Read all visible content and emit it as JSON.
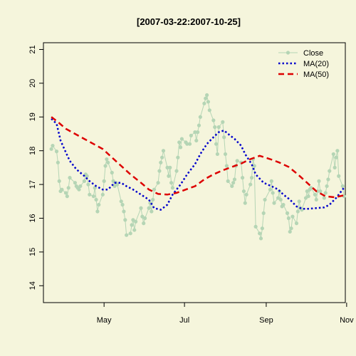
{
  "chart_data": {
    "type": "line",
    "title": "[2007-03-22:2007-10-25]",
    "xlabel": "",
    "ylabel": "",
    "xlim": [
      "2007-03-16",
      "2007-10-31"
    ],
    "ylim": [
      13.5,
      21.2
    ],
    "x_ticks": [
      {
        "label": "May",
        "date": "2007-05-01"
      },
      {
        "label": "Jul",
        "date": "2007-07-01"
      },
      {
        "label": "Sep",
        "date": "2007-09-01"
      },
      {
        "label": "Nov",
        "date": "2007-11-01"
      }
    ],
    "y_ticks": [
      14,
      15,
      16,
      17,
      18,
      19,
      20,
      21
    ],
    "grid": false,
    "legend_position": "top-right",
    "colors": {
      "background": "#F5F5DC",
      "close": "#B5D5B5",
      "ma20": "#0000CC",
      "ma50": "#DD0000",
      "axis": "#000000"
    },
    "series": [
      {
        "name": "Close",
        "style": "line-points",
        "points": [
          [
            "2007-03-22",
            18.05
          ],
          [
            "2007-03-23",
            18.15
          ],
          [
            "2007-03-26",
            17.98
          ],
          [
            "2007-03-27",
            17.65
          ],
          [
            "2007-03-28",
            17.1
          ],
          [
            "2007-03-29",
            16.8
          ],
          [
            "2007-03-30",
            16.85
          ],
          [
            "2007-04-02",
            16.75
          ],
          [
            "2007-04-03",
            16.65
          ],
          [
            "2007-04-04",
            16.9
          ],
          [
            "2007-04-05",
            17.2
          ],
          [
            "2007-04-09",
            17.05
          ],
          [
            "2007-04-10",
            16.95
          ],
          [
            "2007-04-11",
            16.9
          ],
          [
            "2007-04-12",
            16.85
          ],
          [
            "2007-04-13",
            16.95
          ],
          [
            "2007-04-16",
            17.1
          ],
          [
            "2007-04-17",
            17.3
          ],
          [
            "2007-04-18",
            17.25
          ],
          [
            "2007-04-19",
            17.0
          ],
          [
            "2007-04-20",
            16.7
          ],
          [
            "2007-04-23",
            16.65
          ],
          [
            "2007-04-24",
            16.9
          ],
          [
            "2007-04-25",
            16.55
          ],
          [
            "2007-04-26",
            16.2
          ],
          [
            "2007-04-27",
            16.4
          ],
          [
            "2007-04-30",
            16.7
          ],
          [
            "2007-05-01",
            17.1
          ],
          [
            "2007-05-02",
            17.55
          ],
          [
            "2007-05-03",
            17.75
          ],
          [
            "2007-05-04",
            17.65
          ],
          [
            "2007-05-07",
            17.35
          ],
          [
            "2007-05-08",
            17.1
          ],
          [
            "2007-05-09",
            16.95
          ],
          [
            "2007-05-10",
            17.05
          ],
          [
            "2007-05-11",
            17.0
          ],
          [
            "2007-05-14",
            16.5
          ],
          [
            "2007-05-15",
            16.4
          ],
          [
            "2007-05-16",
            16.2
          ],
          [
            "2007-05-17",
            15.95
          ],
          [
            "2007-05-18",
            15.5
          ],
          [
            "2007-05-21",
            15.55
          ],
          [
            "2007-05-22",
            15.8
          ],
          [
            "2007-05-23",
            15.95
          ],
          [
            "2007-05-24",
            15.65
          ],
          [
            "2007-05-25",
            15.9
          ],
          [
            "2007-05-29",
            16.3
          ],
          [
            "2007-05-30",
            16.05
          ],
          [
            "2007-05-31",
            15.85
          ],
          [
            "2007-06-01",
            16.0
          ],
          [
            "2007-06-04",
            16.3
          ],
          [
            "2007-06-05",
            16.45
          ],
          [
            "2007-06-06",
            16.2
          ],
          [
            "2007-06-07",
            16.55
          ],
          [
            "2007-06-08",
            16.85
          ],
          [
            "2007-06-11",
            17.05
          ],
          [
            "2007-06-12",
            17.4
          ],
          [
            "2007-06-13",
            17.65
          ],
          [
            "2007-06-14",
            17.8
          ],
          [
            "2007-06-15",
            18.0
          ],
          [
            "2007-06-18",
            17.5
          ],
          [
            "2007-06-19",
            17.25
          ],
          [
            "2007-06-20",
            17.5
          ],
          [
            "2007-06-21",
            17.05
          ],
          [
            "2007-06-22",
            16.9
          ],
          [
            "2007-06-25",
            17.4
          ],
          [
            "2007-06-26",
            17.8
          ],
          [
            "2007-06-27",
            18.25
          ],
          [
            "2007-06-28",
            18.1
          ],
          [
            "2007-06-29",
            18.35
          ],
          [
            "2007-07-02",
            18.25
          ],
          [
            "2007-07-03",
            18.2
          ],
          [
            "2007-07-05",
            18.2
          ],
          [
            "2007-07-06",
            18.45
          ],
          [
            "2007-07-09",
            18.55
          ],
          [
            "2007-07-10",
            18.3
          ],
          [
            "2007-07-11",
            18.55
          ],
          [
            "2007-07-12",
            18.75
          ],
          [
            "2007-07-13",
            19.0
          ],
          [
            "2007-07-16",
            19.4
          ],
          [
            "2007-07-17",
            19.55
          ],
          [
            "2007-07-18",
            19.65
          ],
          [
            "2007-07-19",
            19.45
          ],
          [
            "2007-07-20",
            19.2
          ],
          [
            "2007-07-23",
            18.9
          ],
          [
            "2007-07-24",
            18.7
          ],
          [
            "2007-07-25",
            18.2
          ],
          [
            "2007-07-26",
            17.9
          ],
          [
            "2007-07-27",
            18.7
          ],
          [
            "2007-07-30",
            18.85
          ],
          [
            "2007-07-31",
            18.4
          ],
          [
            "2007-08-01",
            17.9
          ],
          [
            "2007-08-02",
            17.55
          ],
          [
            "2007-08-03",
            17.1
          ],
          [
            "2007-08-06",
            16.95
          ],
          [
            "2007-08-07",
            17.05
          ],
          [
            "2007-08-08",
            17.15
          ],
          [
            "2007-08-09",
            17.55
          ],
          [
            "2007-08-10",
            17.7
          ],
          [
            "2007-08-13",
            17.65
          ],
          [
            "2007-08-14",
            17.2
          ],
          [
            "2007-08-15",
            16.8
          ],
          [
            "2007-08-16",
            16.45
          ],
          [
            "2007-08-17",
            16.7
          ],
          [
            "2007-08-20",
            17.0
          ],
          [
            "2007-08-21",
            17.2
          ],
          [
            "2007-08-22",
            17.75
          ],
          [
            "2007-08-23",
            17.55
          ],
          [
            "2007-08-24",
            15.75
          ],
          [
            "2007-08-27",
            15.55
          ],
          [
            "2007-08-28",
            15.4
          ],
          [
            "2007-08-29",
            15.7
          ],
          [
            "2007-08-30",
            16.15
          ],
          [
            "2007-08-31",
            16.55
          ],
          [
            "2007-09-04",
            16.85
          ],
          [
            "2007-09-05",
            17.1
          ],
          [
            "2007-09-06",
            16.75
          ],
          [
            "2007-09-07",
            16.45
          ],
          [
            "2007-09-10",
            16.6
          ],
          [
            "2007-09-11",
            16.8
          ],
          [
            "2007-09-12",
            16.55
          ],
          [
            "2007-09-13",
            16.35
          ],
          [
            "2007-09-14",
            16.4
          ],
          [
            "2007-09-17",
            16.15
          ],
          [
            "2007-09-18",
            16.0
          ],
          [
            "2007-09-19",
            15.6
          ],
          [
            "2007-09-20",
            15.7
          ],
          [
            "2007-09-21",
            16.05
          ],
          [
            "2007-09-24",
            15.85
          ],
          [
            "2007-09-25",
            16.2
          ],
          [
            "2007-09-26",
            16.5
          ],
          [
            "2007-09-27",
            16.3
          ],
          [
            "2007-09-28",
            16.25
          ],
          [
            "2007-10-01",
            16.6
          ],
          [
            "2007-10-02",
            16.8
          ],
          [
            "2007-10-03",
            16.65
          ],
          [
            "2007-10-04",
            16.85
          ],
          [
            "2007-10-05",
            16.9
          ],
          [
            "2007-10-08",
            16.7
          ],
          [
            "2007-10-09",
            16.55
          ],
          [
            "2007-10-10",
            16.8
          ],
          [
            "2007-10-11",
            17.1
          ],
          [
            "2007-10-12",
            16.8
          ],
          [
            "2007-10-15",
            16.6
          ],
          [
            "2007-10-16",
            16.75
          ],
          [
            "2007-10-17",
            16.95
          ],
          [
            "2007-10-18",
            17.15
          ],
          [
            "2007-10-19",
            17.4
          ],
          [
            "2007-10-22",
            17.9
          ],
          [
            "2007-10-23",
            17.5
          ],
          [
            "2007-10-24",
            17.8
          ],
          [
            "2007-10-25",
            18.0
          ],
          [
            "2007-10-26",
            17.25
          ],
          [
            "2007-10-29",
            16.95
          ],
          [
            "2007-10-30",
            16.65
          ]
        ]
      },
      {
        "name": "MA(20)",
        "style": "dotted",
        "points": [
          [
            "2007-03-22",
            18.95
          ],
          [
            "2007-03-26",
            18.8
          ],
          [
            "2007-03-29",
            18.3
          ],
          [
            "2007-04-02",
            17.95
          ],
          [
            "2007-04-05",
            17.7
          ],
          [
            "2007-04-10",
            17.45
          ],
          [
            "2007-04-16",
            17.25
          ],
          [
            "2007-04-20",
            17.1
          ],
          [
            "2007-04-25",
            16.95
          ],
          [
            "2007-04-30",
            16.85
          ],
          [
            "2007-05-04",
            16.85
          ],
          [
            "2007-05-09",
            17.05
          ],
          [
            "2007-05-14",
            17.05
          ],
          [
            "2007-05-18",
            16.95
          ],
          [
            "2007-05-23",
            16.85
          ],
          [
            "2007-05-29",
            16.7
          ],
          [
            "2007-06-04",
            16.55
          ],
          [
            "2007-06-08",
            16.3
          ],
          [
            "2007-06-13",
            16.25
          ],
          [
            "2007-06-18",
            16.4
          ],
          [
            "2007-06-22",
            16.7
          ],
          [
            "2007-06-28",
            17.0
          ],
          [
            "2007-07-03",
            17.3
          ],
          [
            "2007-07-09",
            17.6
          ],
          [
            "2007-07-13",
            17.9
          ],
          [
            "2007-07-18",
            18.2
          ],
          [
            "2007-07-23",
            18.4
          ],
          [
            "2007-07-27",
            18.55
          ],
          [
            "2007-07-31",
            18.6
          ],
          [
            "2007-08-03",
            18.5
          ],
          [
            "2007-08-08",
            18.35
          ],
          [
            "2007-08-13",
            18.15
          ],
          [
            "2007-08-16",
            17.9
          ],
          [
            "2007-08-21",
            17.6
          ],
          [
            "2007-08-24",
            17.3
          ],
          [
            "2007-08-30",
            17.05
          ],
          [
            "2007-09-05",
            16.95
          ],
          [
            "2007-09-10",
            16.85
          ],
          [
            "2007-09-14",
            16.7
          ],
          [
            "2007-09-19",
            16.55
          ],
          [
            "2007-09-24",
            16.35
          ],
          [
            "2007-09-28",
            16.28
          ],
          [
            "2007-10-03",
            16.28
          ],
          [
            "2007-10-09",
            16.3
          ],
          [
            "2007-10-15",
            16.32
          ],
          [
            "2007-10-19",
            16.4
          ],
          [
            "2007-10-24",
            16.6
          ],
          [
            "2007-10-30",
            16.9
          ]
        ]
      },
      {
        "name": "MA(50)",
        "style": "dashed",
        "points": [
          [
            "2007-03-22",
            19.0
          ],
          [
            "2007-03-27",
            18.85
          ],
          [
            "2007-04-02",
            18.65
          ],
          [
            "2007-04-09",
            18.5
          ],
          [
            "2007-04-16",
            18.35
          ],
          [
            "2007-04-23",
            18.2
          ],
          [
            "2007-04-30",
            18.05
          ],
          [
            "2007-05-07",
            17.8
          ],
          [
            "2007-05-14",
            17.55
          ],
          [
            "2007-05-21",
            17.3
          ],
          [
            "2007-05-29",
            17.05
          ],
          [
            "2007-06-04",
            16.85
          ],
          [
            "2007-06-11",
            16.72
          ],
          [
            "2007-06-18",
            16.7
          ],
          [
            "2007-06-25",
            16.75
          ],
          [
            "2007-07-02",
            16.85
          ],
          [
            "2007-07-09",
            16.95
          ],
          [
            "2007-07-16",
            17.15
          ],
          [
            "2007-07-23",
            17.3
          ],
          [
            "2007-07-30",
            17.42
          ],
          [
            "2007-08-06",
            17.52
          ],
          [
            "2007-08-13",
            17.62
          ],
          [
            "2007-08-20",
            17.75
          ],
          [
            "2007-08-27",
            17.85
          ],
          [
            "2007-09-04",
            17.75
          ],
          [
            "2007-09-11",
            17.65
          ],
          [
            "2007-09-18",
            17.52
          ],
          [
            "2007-09-25",
            17.3
          ],
          [
            "2007-10-02",
            17.05
          ],
          [
            "2007-10-09",
            16.8
          ],
          [
            "2007-10-16",
            16.65
          ],
          [
            "2007-10-23",
            16.62
          ],
          [
            "2007-10-30",
            16.68
          ]
        ]
      }
    ]
  }
}
